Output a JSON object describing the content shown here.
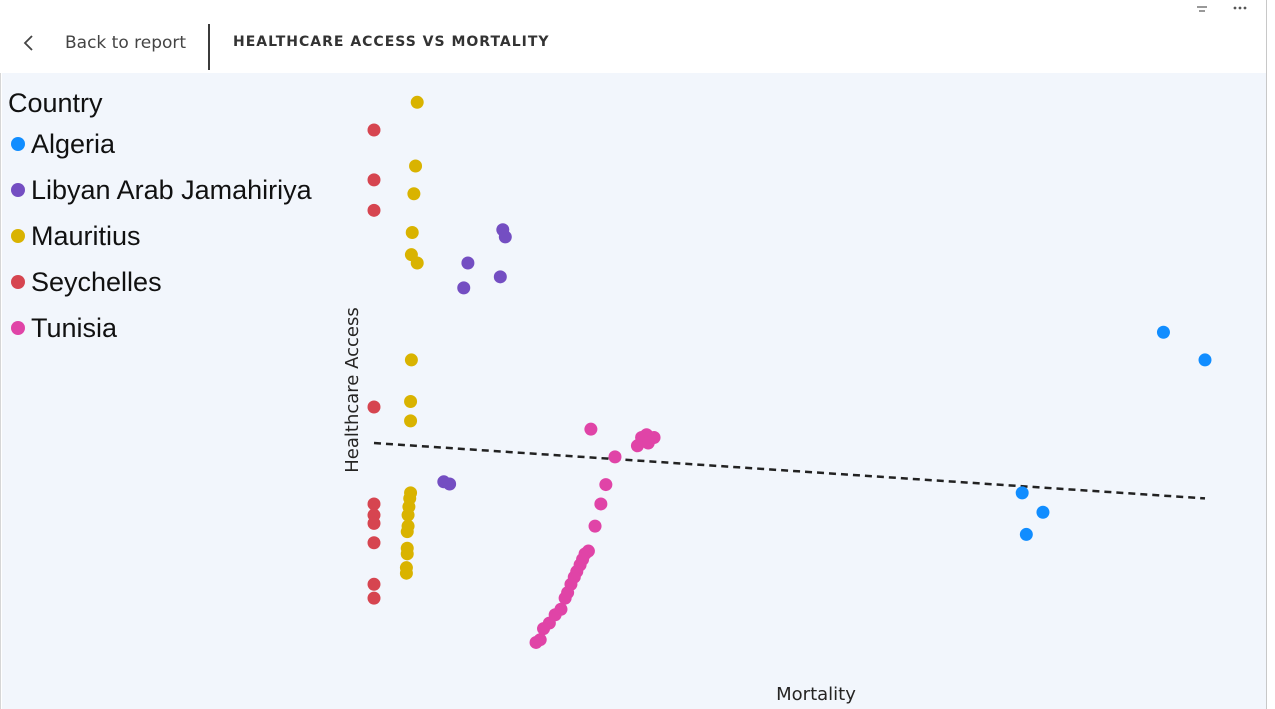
{
  "header": {
    "back_label": "Back to report",
    "title": "HEALTHCARE ACCESS VS MORTALITY",
    "icons": [
      "chevron-left-icon",
      "filter-icon",
      "more-options-icon"
    ]
  },
  "legend": {
    "title": "Country",
    "items": [
      {
        "label": "Algeria",
        "color": "#118DFF"
      },
      {
        "label": "Libyan Arab Jamahiriya",
        "color": "#744EC2"
      },
      {
        "label": "Mauritius",
        "color": "#D9B300"
      },
      {
        "label": "Seychelles",
        "color": "#D64550"
      },
      {
        "label": "Tunisia",
        "color": "#E044A7"
      }
    ]
  },
  "chart_data": {
    "type": "scatter",
    "xlabel": "Mortality",
    "ylabel": "Healthcare Access",
    "xlim": [
      0,
      100
    ],
    "ylim": [
      0,
      100
    ],
    "grid": false,
    "legend_position": "top-left",
    "series": [
      {
        "name": "Algeria",
        "color": "#118DFF",
        "points": [
          [
            95,
            57
          ],
          [
            100,
            52
          ],
          [
            78,
            28
          ],
          [
            80.5,
            24.5
          ],
          [
            78.5,
            20.5
          ]
        ]
      },
      {
        "name": "Libyan Arab Jamahiriya",
        "color": "#744EC2",
        "points": [
          [
            15.5,
            75.5
          ],
          [
            15.8,
            74.2
          ],
          [
            11.3,
            69.5
          ],
          [
            15.2,
            67
          ],
          [
            10.8,
            65
          ],
          [
            8.4,
            30
          ],
          [
            9.1,
            29.6
          ]
        ]
      },
      {
        "name": "Mauritius",
        "color": "#D9B300",
        "points": [
          [
            5.2,
            98.5
          ],
          [
            5,
            87
          ],
          [
            4.8,
            82
          ],
          [
            4.6,
            75
          ],
          [
            4.5,
            71
          ],
          [
            5.2,
            69.5
          ],
          [
            4.5,
            52
          ],
          [
            4.4,
            44.5
          ],
          [
            4.4,
            41
          ],
          [
            4.4,
            28
          ],
          [
            4.3,
            27
          ],
          [
            4.2,
            25.5
          ],
          [
            4.1,
            24
          ],
          [
            4.1,
            22
          ],
          [
            4,
            21
          ],
          [
            4,
            18
          ],
          [
            4,
            17
          ],
          [
            3.9,
            14.5
          ],
          [
            3.9,
            13.5
          ]
        ]
      },
      {
        "name": "Seychelles",
        "color": "#D64550",
        "points": [
          [
            0,
            93.5
          ],
          [
            0,
            84.5
          ],
          [
            0,
            79
          ],
          [
            0,
            43.5
          ],
          [
            0,
            26
          ],
          [
            0,
            24
          ],
          [
            0,
            22.5
          ],
          [
            0,
            19
          ],
          [
            0,
            11.5
          ],
          [
            0,
            9
          ]
        ]
      },
      {
        "name": "Tunisia",
        "color": "#E044A7",
        "points": [
          [
            26.1,
            39.5
          ],
          [
            32.8,
            38.5
          ],
          [
            32.2,
            38
          ],
          [
            33.7,
            38
          ],
          [
            33,
            37
          ],
          [
            31.7,
            36.5
          ],
          [
            29,
            34.5
          ],
          [
            27.9,
            29.5
          ],
          [
            27.3,
            26
          ],
          [
            26.6,
            22
          ],
          [
            25.8,
            17.5
          ],
          [
            25.4,
            17
          ],
          [
            25.1,
            16
          ],
          [
            24.8,
            15
          ],
          [
            24.4,
            13.8
          ],
          [
            24.1,
            12.8
          ],
          [
            23.7,
            11.5
          ],
          [
            23.3,
            10
          ],
          [
            23,
            9
          ],
          [
            22.5,
            7
          ],
          [
            21.8,
            6
          ],
          [
            21.1,
            4.5
          ],
          [
            20.4,
            3.5
          ],
          [
            20,
            1.5
          ],
          [
            19.5,
            1
          ]
        ]
      }
    ],
    "trendline": {
      "style": "dashed",
      "points": [
        [
          0,
          37
        ],
        [
          100,
          27
        ]
      ]
    }
  }
}
